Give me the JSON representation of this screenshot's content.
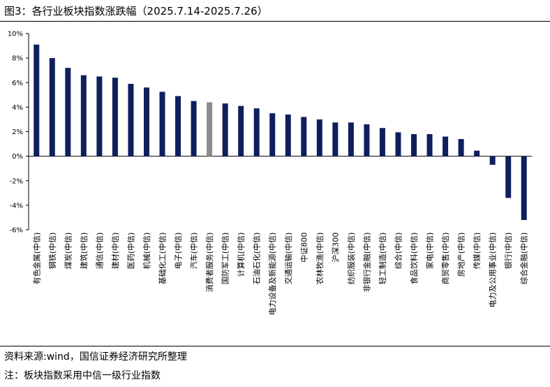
{
  "title": "图3：各行业板块指数涨跌幅（2025.7.14-2025.7.26）",
  "source": "资料来源:wind，国信证券经济研究所整理",
  "footnote": "注：板块指数采用中信一级行业指数",
  "colors": {
    "bar": "#0f1f5c",
    "highlight": "#8c8c8c",
    "axis": "#000000"
  },
  "chart_data": {
    "type": "bar",
    "categories": [
      "有色金属(中信)",
      "钢铁(中信)",
      "煤炭(中信)",
      "建筑(中信)",
      "通信(中信)",
      "建材(中信)",
      "医药(中信)",
      "机械(中信)",
      "基础化工(中信)",
      "电子(中信)",
      "汽车(中信)",
      "消费者服务(中信)",
      "国防军工(中信)",
      "计算机(中信)",
      "石油石化(中信)",
      "电力设备及新能源(中信)",
      "交通运输(中信)",
      "中证800",
      "农林牧渔(中信)",
      "沪深300",
      "纺织服装(中信)",
      "非银行金融(中信)",
      "轻工制造(中信)",
      "综合(中信)",
      "食品饮料(中信)",
      "家电(中信)",
      "商贸零售(中信)",
      "房地产(中信)",
      "传媒(中信)",
      "电力及公用事业(中信)",
      "银行(中信)",
      "综合金融(中信)"
    ],
    "values": [
      9.1,
      8.0,
      7.2,
      6.6,
      6.5,
      6.4,
      5.9,
      5.6,
      5.25,
      4.9,
      4.5,
      4.4,
      4.3,
      4.1,
      3.9,
      3.5,
      3.4,
      3.2,
      3.0,
      2.75,
      2.75,
      2.6,
      2.3,
      1.95,
      1.8,
      1.8,
      1.6,
      1.4,
      0.45,
      -0.7,
      -3.4,
      -5.2
    ],
    "highlight_index": 11,
    "ylim": [
      -6,
      10
    ],
    "yticks": [
      "10%",
      "8%",
      "6%",
      "4%",
      "2%",
      "0%",
      "-2%",
      "-4%",
      "-6%"
    ],
    "ytick_values": [
      10,
      8,
      6,
      4,
      2,
      0,
      -2,
      -4,
      -6
    ],
    "grid": false,
    "legend": "none"
  }
}
